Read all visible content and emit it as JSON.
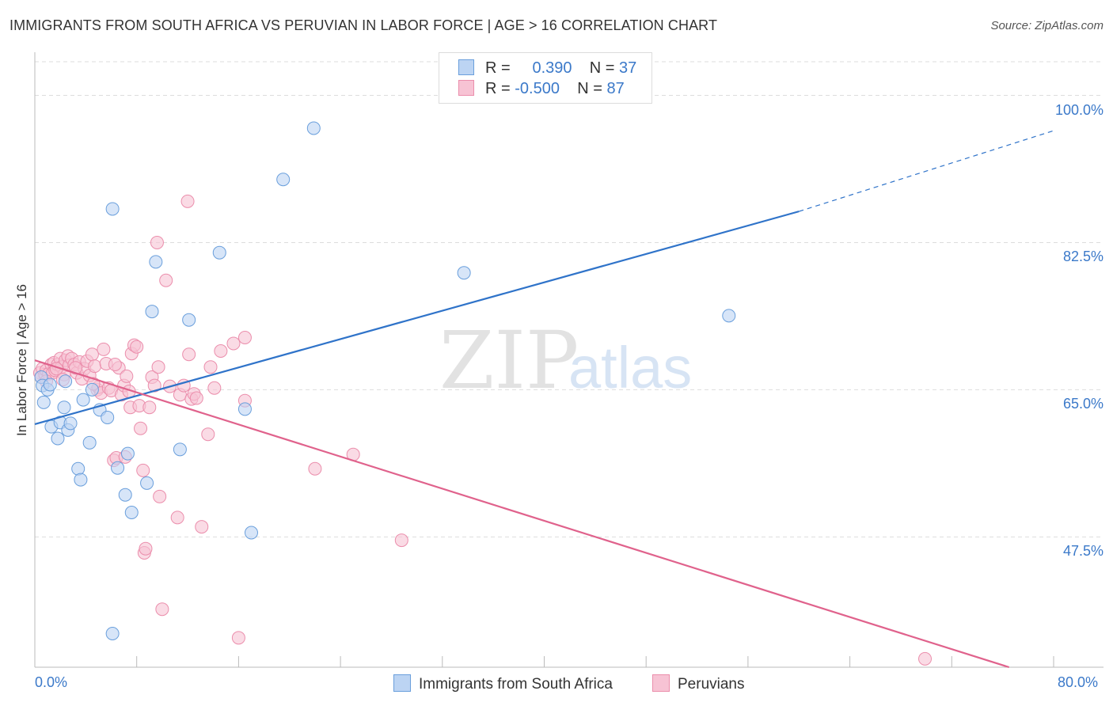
{
  "title": "IMMIGRANTS FROM SOUTH AFRICA VS PERUVIAN IN LABOR FORCE | AGE > 16 CORRELATION CHART",
  "source": "Source: ZipAtlas.com",
  "watermark": {
    "zip": "ZIP",
    "atlas": "atlas"
  },
  "legend": {
    "rows": [
      {
        "r_label": "R =",
        "r_value": "0.390",
        "n_label": "N =",
        "n_value": "37"
      },
      {
        "r_label": "R =",
        "r_value": "-0.500",
        "n_label": "N =",
        "n_value": "87"
      }
    ]
  },
  "bottom_legend": {
    "series1": "Immigrants from South Africa",
    "series2": "Peruvians"
  },
  "colors": {
    "blue_fill": "#bcd4f3",
    "blue_stroke": "#6a9fdc",
    "blue_line": "#2f73c9",
    "pink_fill": "#f7c3d4",
    "pink_stroke": "#eb8eac",
    "pink_line": "#e0628c",
    "tick_text": "#3b79c9",
    "grid": "#dddddd"
  },
  "chart_data": {
    "type": "scatter",
    "title": "IMMIGRANTS FROM SOUTH AFRICA VS PERUVIAN IN LABOR FORCE | AGE > 16 CORRELATION CHART",
    "xlabel": "",
    "ylabel": "In Labor Force | Age > 16",
    "xlim": [
      0,
      80
    ],
    "ylim": [
      32,
      104
    ],
    "x_ticks": [
      "0.0%",
      "80.0%"
    ],
    "y_ticks": [
      {
        "value": 100,
        "label": "100.0%"
      },
      {
        "value": 82.5,
        "label": "82.5%"
      },
      {
        "value": 65,
        "label": "65.0%"
      },
      {
        "value": 47.5,
        "label": "47.5%"
      }
    ],
    "grid": true,
    "legend_position": "top-center",
    "series": [
      {
        "name": "Immigrants from South Africa",
        "r": 0.39,
        "n": 37,
        "trend": {
          "x0": 0,
          "y0": 60.9,
          "x1": 60,
          "y1": 86.2,
          "dashed_to_x": 80,
          "dashed_to_y": 95.8
        },
        "points": [
          [
            0.5,
            66.5
          ],
          [
            0.6,
            65.5
          ],
          [
            0.7,
            63.5
          ],
          [
            1.0,
            65.0
          ],
          [
            1.3,
            60.6
          ],
          [
            1.8,
            59.2
          ],
          [
            2.0,
            61.1
          ],
          [
            2.3,
            62.9
          ],
          [
            2.4,
            66.0
          ],
          [
            2.6,
            60.2
          ],
          [
            2.8,
            61.0
          ],
          [
            3.4,
            55.6
          ],
          [
            3.6,
            54.3
          ],
          [
            3.8,
            63.8
          ],
          [
            4.3,
            58.7
          ],
          [
            4.5,
            65.0
          ],
          [
            5.1,
            62.6
          ],
          [
            5.7,
            61.7
          ],
          [
            6.1,
            86.5
          ],
          [
            6.5,
            55.7
          ],
          [
            7.1,
            52.5
          ],
          [
            7.3,
            57.4
          ],
          [
            7.6,
            50.4
          ],
          [
            8.8,
            53.9
          ],
          [
            9.5,
            80.2
          ],
          [
            9.2,
            74.3
          ],
          [
            11.4,
            57.9
          ],
          [
            12.1,
            73.3
          ],
          [
            14.5,
            81.3
          ],
          [
            16.5,
            62.7
          ],
          [
            17.0,
            48.0
          ],
          [
            19.5,
            90.0
          ],
          [
            21.9,
            96.1
          ],
          [
            33.7,
            78.9
          ],
          [
            54.5,
            73.8
          ],
          [
            6.1,
            36.0
          ],
          [
            1.2,
            65.6
          ]
        ]
      },
      {
        "name": "Peruvians",
        "r": -0.5,
        "n": 87,
        "trend": {
          "x0": 0,
          "y0": 68.5,
          "x1": 76.5,
          "y1": 32
        },
        "points": [
          [
            0.4,
            67.0
          ],
          [
            0.5,
            66.5
          ],
          [
            0.6,
            67.5
          ],
          [
            0.8,
            66.8
          ],
          [
            0.9,
            67.3
          ],
          [
            1.1,
            66.9
          ],
          [
            1.3,
            68.0
          ],
          [
            1.4,
            67.0
          ],
          [
            1.5,
            68.2
          ],
          [
            1.6,
            67.3
          ],
          [
            1.8,
            68.0
          ],
          [
            2.0,
            68.7
          ],
          [
            2.1,
            67.7
          ],
          [
            2.3,
            66.8
          ],
          [
            2.4,
            68.5
          ],
          [
            2.6,
            69.0
          ],
          [
            2.7,
            67.9
          ],
          [
            2.9,
            68.7
          ],
          [
            3.1,
            68.0
          ],
          [
            3.3,
            67.0
          ],
          [
            3.5,
            68.3
          ],
          [
            3.7,
            66.3
          ],
          [
            3.9,
            67.5
          ],
          [
            4.1,
            68.4
          ],
          [
            4.3,
            66.7
          ],
          [
            4.5,
            69.2
          ],
          [
            4.7,
            67.8
          ],
          [
            4.9,
            65.0
          ],
          [
            5.0,
            65.3
          ],
          [
            5.2,
            64.6
          ],
          [
            5.4,
            69.8
          ],
          [
            5.6,
            68.1
          ],
          [
            5.8,
            65.2
          ],
          [
            6.0,
            64.9
          ],
          [
            6.2,
            56.6
          ],
          [
            6.4,
            56.9
          ],
          [
            6.6,
            67.6
          ],
          [
            6.8,
            64.4
          ],
          [
            7.0,
            65.5
          ],
          [
            7.2,
            66.6
          ],
          [
            7.4,
            64.8
          ],
          [
            7.5,
            62.9
          ],
          [
            7.6,
            69.3
          ],
          [
            7.8,
            70.3
          ],
          [
            8.0,
            70.1
          ],
          [
            8.2,
            63.1
          ],
          [
            8.3,
            60.4
          ],
          [
            8.5,
            55.4
          ],
          [
            8.6,
            45.6
          ],
          [
            8.7,
            46.1
          ],
          [
            9.0,
            62.9
          ],
          [
            9.2,
            66.5
          ],
          [
            9.4,
            65.5
          ],
          [
            9.6,
            82.5
          ],
          [
            9.7,
            67.7
          ],
          [
            9.8,
            52.3
          ],
          [
            10.0,
            38.9
          ],
          [
            10.3,
            78.0
          ],
          [
            10.6,
            65.4
          ],
          [
            11.2,
            49.8
          ],
          [
            11.4,
            64.4
          ],
          [
            11.7,
            65.5
          ],
          [
            12.0,
            87.4
          ],
          [
            12.1,
            69.2
          ],
          [
            12.3,
            63.9
          ],
          [
            12.5,
            64.5
          ],
          [
            12.7,
            64.0
          ],
          [
            13.1,
            48.7
          ],
          [
            13.6,
            59.7
          ],
          [
            13.8,
            67.7
          ],
          [
            14.1,
            65.2
          ],
          [
            14.6,
            69.6
          ],
          [
            15.6,
            70.5
          ],
          [
            16.0,
            35.5
          ],
          [
            16.5,
            71.2
          ],
          [
            16.5,
            63.7
          ],
          [
            22.0,
            55.6
          ],
          [
            25.0,
            57.3
          ],
          [
            28.8,
            47.1
          ],
          [
            69.9,
            33.0
          ],
          [
            7.1,
            57.0
          ],
          [
            1.7,
            67.5
          ],
          [
            2.2,
            66.2
          ],
          [
            0.9,
            66.0
          ],
          [
            3.2,
            67.6
          ],
          [
            4.6,
            65.7
          ],
          [
            6.3,
            68.0
          ]
        ]
      }
    ]
  }
}
